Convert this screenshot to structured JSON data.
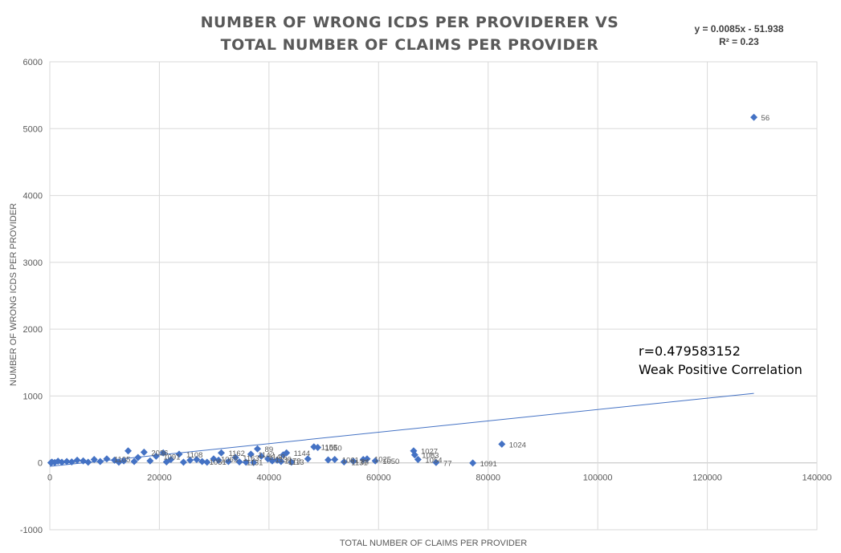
{
  "colors": {
    "marker": "#4472c4",
    "trendline": "#4472c4",
    "grid": "#d9d9d9",
    "text": "#595959"
  },
  "chart_data": {
    "type": "scatter",
    "title_line1": "NUMBER OF WRONG ICDS PER PROVIDERER VS",
    "title_line2": "TOTAL NUMBER OF CLAIMS PER PROVIDER",
    "xlabel": "TOTAL NUMBER OF CLAIMS PER PROVIDER",
    "ylabel": "NUMBER OF WRONG ICDS PER PROVIDER",
    "xlim": [
      0,
      140000
    ],
    "ylim": [
      -1000,
      6000
    ],
    "x_ticks": [
      0,
      20000,
      40000,
      60000,
      80000,
      100000,
      120000,
      140000
    ],
    "y_ticks": [
      -1000,
      0,
      1000,
      2000,
      3000,
      4000,
      5000,
      6000
    ],
    "grid": true,
    "legend": "none",
    "trendline": {
      "equation": "y = 0.0085x - 51.938",
      "r_squared": "R² = 0.23",
      "slope": 0.0085,
      "intercept": -51.938,
      "x_range": [
        0,
        128500
      ]
    },
    "annotation_line1": "r=0.479583152",
    "annotation_line2": "Weak Positive Correlation",
    "points": [
      {
        "x": 128500,
        "y": 5170,
        "label": "56"
      },
      {
        "x": 82500,
        "y": 280,
        "label": "1024"
      },
      {
        "x": 77200,
        "y": -2,
        "label": "1091"
      },
      {
        "x": 70500,
        "y": 5,
        "label": "77"
      },
      {
        "x": 67200,
        "y": 50,
        "label": "1054"
      },
      {
        "x": 66600,
        "y": 120,
        "label": "1083"
      },
      {
        "x": 66400,
        "y": 180,
        "label": "1027"
      },
      {
        "x": 59400,
        "y": 30,
        "label": "1050"
      },
      {
        "x": 57900,
        "y": 60,
        "label": "1025"
      },
      {
        "x": 57200,
        "y": 50,
        "label": ""
      },
      {
        "x": 53700,
        "y": 15,
        "label": "1131"
      },
      {
        "x": 55400,
        "y": 25,
        "label": "84"
      },
      {
        "x": 52000,
        "y": 50,
        "label": "1061"
      },
      {
        "x": 50800,
        "y": 45,
        "label": ""
      },
      {
        "x": 48900,
        "y": 230,
        "label": "1050"
      },
      {
        "x": 48200,
        "y": 240,
        "label": "1155"
      },
      {
        "x": 47100,
        "y": 60,
        "label": ""
      },
      {
        "x": 43200,
        "y": 150,
        "label": "1144"
      },
      {
        "x": 42600,
        "y": 120,
        "label": ""
      },
      {
        "x": 41500,
        "y": 40,
        "label": "1173"
      },
      {
        "x": 42200,
        "y": 20,
        "label": "1113"
      },
      {
        "x": 39800,
        "y": 60,
        "label": "1130"
      },
      {
        "x": 38600,
        "y": 100,
        "label": "1140"
      },
      {
        "x": 37900,
        "y": 210,
        "label": "89"
      },
      {
        "x": 36700,
        "y": 130,
        "label": "1142"
      },
      {
        "x": 34600,
        "y": 15,
        "label": "1131"
      },
      {
        "x": 33900,
        "y": 80,
        "label": "1163"
      },
      {
        "x": 31300,
        "y": 150,
        "label": "1162"
      },
      {
        "x": 29900,
        "y": 60,
        "label": "1065"
      },
      {
        "x": 27800,
        "y": 20,
        "label": "1051"
      },
      {
        "x": 25600,
        "y": 40,
        "label": ""
      },
      {
        "x": 23600,
        "y": 130,
        "label": "1108"
      },
      {
        "x": 22100,
        "y": 50,
        "label": ""
      },
      {
        "x": 20700,
        "y": 150,
        "label": ""
      },
      {
        "x": 19400,
        "y": 100,
        "label": "1091"
      },
      {
        "x": 17200,
        "y": 160,
        "label": "2036"
      },
      {
        "x": 16100,
        "y": 80,
        "label": ""
      },
      {
        "x": 14300,
        "y": 180,
        "label": ""
      },
      {
        "x": 13500,
        "y": 30,
        "label": ""
      },
      {
        "x": 11800,
        "y": 40,
        "label": ""
      },
      {
        "x": 10400,
        "y": 60,
        "label": "1105"
      },
      {
        "x": 9200,
        "y": 20,
        "label": ""
      },
      {
        "x": 8100,
        "y": 50,
        "label": ""
      },
      {
        "x": 7000,
        "y": 10,
        "label": ""
      },
      {
        "x": 6100,
        "y": 30,
        "label": ""
      },
      {
        "x": 5000,
        "y": 40,
        "label": ""
      },
      {
        "x": 4000,
        "y": 15,
        "label": ""
      },
      {
        "x": 3100,
        "y": 20,
        "label": ""
      },
      {
        "x": 2200,
        "y": 10,
        "label": ""
      },
      {
        "x": 1500,
        "y": 25,
        "label": ""
      },
      {
        "x": 900,
        "y": 5,
        "label": ""
      },
      {
        "x": 400,
        "y": 12,
        "label": ""
      },
      {
        "x": 200,
        "y": 3,
        "label": ""
      },
      {
        "x": 12600,
        "y": 10,
        "label": ""
      },
      {
        "x": 15400,
        "y": 20,
        "label": ""
      },
      {
        "x": 18300,
        "y": 30,
        "label": ""
      },
      {
        "x": 21300,
        "y": 15,
        "label": ""
      },
      {
        "x": 24400,
        "y": 10,
        "label": ""
      },
      {
        "x": 26800,
        "y": 50,
        "label": ""
      },
      {
        "x": 28700,
        "y": 10,
        "label": ""
      },
      {
        "x": 30800,
        "y": 40,
        "label": ""
      },
      {
        "x": 32600,
        "y": 20,
        "label": ""
      },
      {
        "x": 35800,
        "y": 10,
        "label": ""
      },
      {
        "x": 37200,
        "y": 5,
        "label": ""
      },
      {
        "x": 40600,
        "y": 30,
        "label": ""
      },
      {
        "x": 44100,
        "y": 10,
        "label": ""
      }
    ]
  }
}
